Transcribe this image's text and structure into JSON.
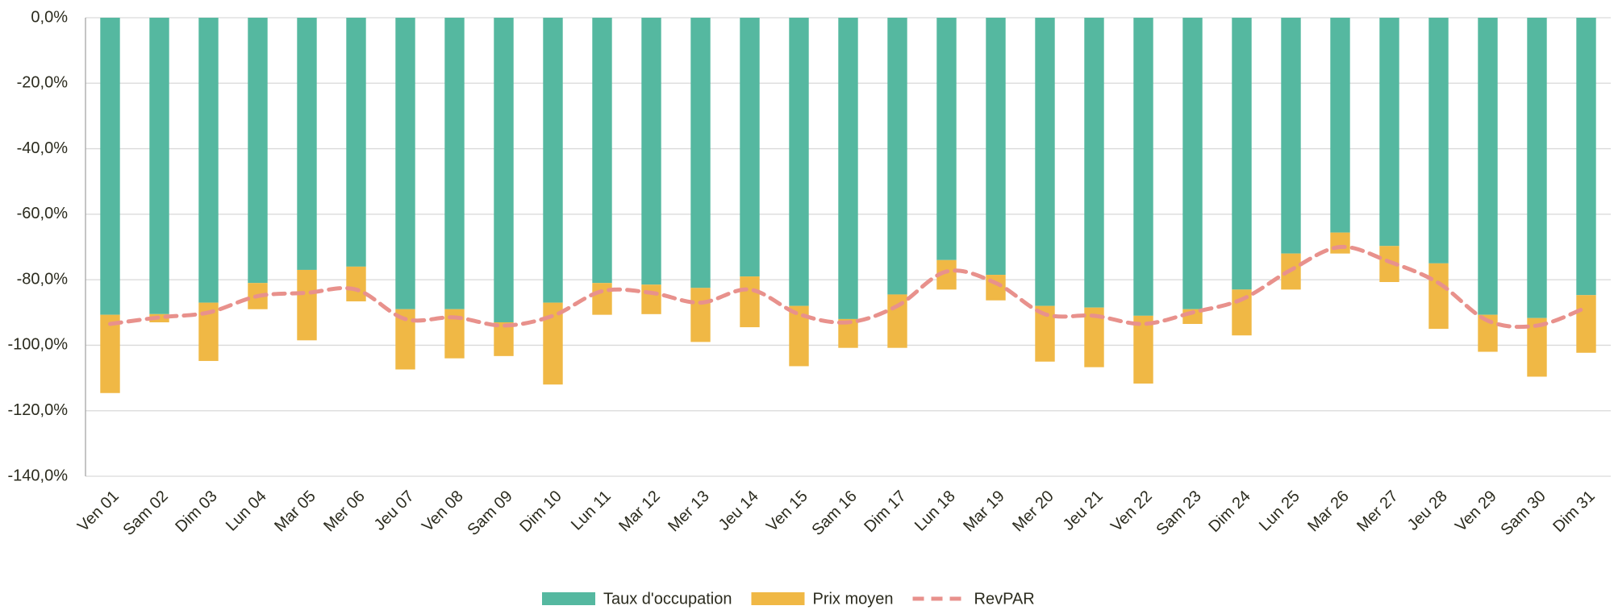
{
  "chart_data": {
    "type": "bar",
    "stacked": true,
    "categories": [
      "Ven 01",
      "Sam 02",
      "Dim 03",
      "Lun 04",
      "Mar 05",
      "Mer 06",
      "Jeu 07",
      "Ven 08",
      "Sam 09",
      "Dim 10",
      "Lun 11",
      "Mar 12",
      "Mer 13",
      "Jeu 14",
      "Ven 15",
      "Sam 16",
      "Dim 17",
      "Lun 18",
      "Mar 19",
      "Mer 20",
      "Jeu 21",
      "Ven 22",
      "Sam 23",
      "Dim 24",
      "Lun 25",
      "Mar 26",
      "Mer 27",
      "Jeu 28",
      "Ven 29",
      "Sam 30",
      "Dim 31"
    ],
    "series": [
      {
        "name": "Taux d'occupation",
        "type": "bar",
        "color": "#55b8a0",
        "values": [
          -90.7,
          -90.5,
          -87,
          -81,
          -77,
          -76,
          -89,
          -89,
          -93,
          -87,
          -81,
          -81.5,
          -82.5,
          -79,
          -88,
          -92,
          -84.5,
          -74,
          -78.5,
          -88,
          -88.5,
          -91,
          -89,
          -83,
          -72,
          -65.6,
          -69.7,
          -75,
          -90.7,
          -91.7,
          -84.7
        ]
      },
      {
        "name": "Prix moyen",
        "type": "bar",
        "color": "#f0b845",
        "values": [
          -23.9,
          -2.5,
          -17.8,
          -8,
          -21.5,
          -10.6,
          -18.4,
          -15,
          -10.3,
          -25,
          -9.7,
          -9,
          -16.5,
          -15.5,
          -18.4,
          -8.8,
          -16.3,
          -9,
          -7.8,
          -17,
          -18.2,
          -20.7,
          -4.5,
          -14,
          -11,
          -6.4,
          -11,
          -20,
          -11.3,
          -17.9,
          -17.6
        ]
      },
      {
        "name": "RevPAR",
        "type": "line",
        "line_style": "dashed",
        "color": "#e8918c",
        "values": [
          -93.5,
          -91.5,
          -90,
          -85,
          -84,
          -83,
          -92,
          -91.5,
          -94,
          -91,
          -83.5,
          -84,
          -87,
          -83,
          -90.5,
          -93,
          -88,
          -77.5,
          -81,
          -90.5,
          -91,
          -93.5,
          -90,
          -86,
          -77,
          -70,
          -74.5,
          -81,
          -92.5,
          -94,
          -88.5
        ]
      }
    ],
    "ylim": [
      -140,
      0
    ],
    "yticks": [
      {
        "value": 0,
        "label": "0,0%"
      },
      {
        "value": -20,
        "label": "-20,0%"
      },
      {
        "value": -40,
        "label": "-40,0%"
      },
      {
        "value": -60,
        "label": "-60,0%"
      },
      {
        "value": -80,
        "label": "-80,0%"
      },
      {
        "value": -100,
        "label": "-100,0%"
      },
      {
        "value": -120,
        "label": "-120,0%"
      },
      {
        "value": -140,
        "label": "-140,0%"
      }
    ],
    "grid": true,
    "legend": "bottom"
  }
}
